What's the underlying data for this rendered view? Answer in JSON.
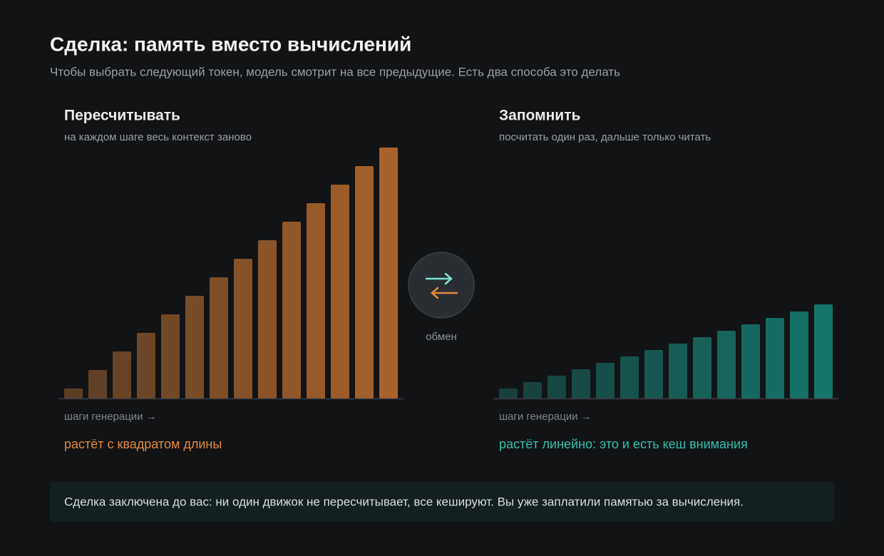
{
  "header": {
    "title": "Сделка: память вместо вычислений",
    "subtitle": "Чтобы выбрать следующий токен, модель смотрит на все предыдущие. Есть два способа это делать"
  },
  "chart_data": [
    {
      "type": "bar",
      "title": "Пересчитывать",
      "subtitle": "на каждом шаге весь контекст заново",
      "x_label": "шаги генерации →",
      "note": "растёт с квадратом длины",
      "values": [
        14,
        40,
        66,
        92,
        118,
        144,
        170,
        196,
        222,
        248,
        274,
        300,
        326,
        352
      ],
      "ylim": [
        0,
        360
      ],
      "color_start": "#5a3e24",
      "color_end": "#a8622b",
      "note_color": "#e28a3c"
    },
    {
      "type": "bar",
      "title": "Запомнить",
      "subtitle": "посчитать один раз, дальше только читать",
      "x_label": "шаги генерации →",
      "note": "растёт линейно: это и есть кеш внимания",
      "values": [
        14,
        23,
        32,
        41,
        50,
        59,
        68,
        77,
        86,
        95,
        104,
        113,
        122,
        132
      ],
      "ylim": [
        0,
        360
      ],
      "color_start": "#173f3c",
      "color_end": "#157469",
      "note_color": "#2fc0ad"
    }
  ],
  "center_label": "обмен",
  "footer": "Сделка заключена до вас: ни один движок не пересчитывает, все кешируют. Вы уже заплатили памятью за вычисления."
}
